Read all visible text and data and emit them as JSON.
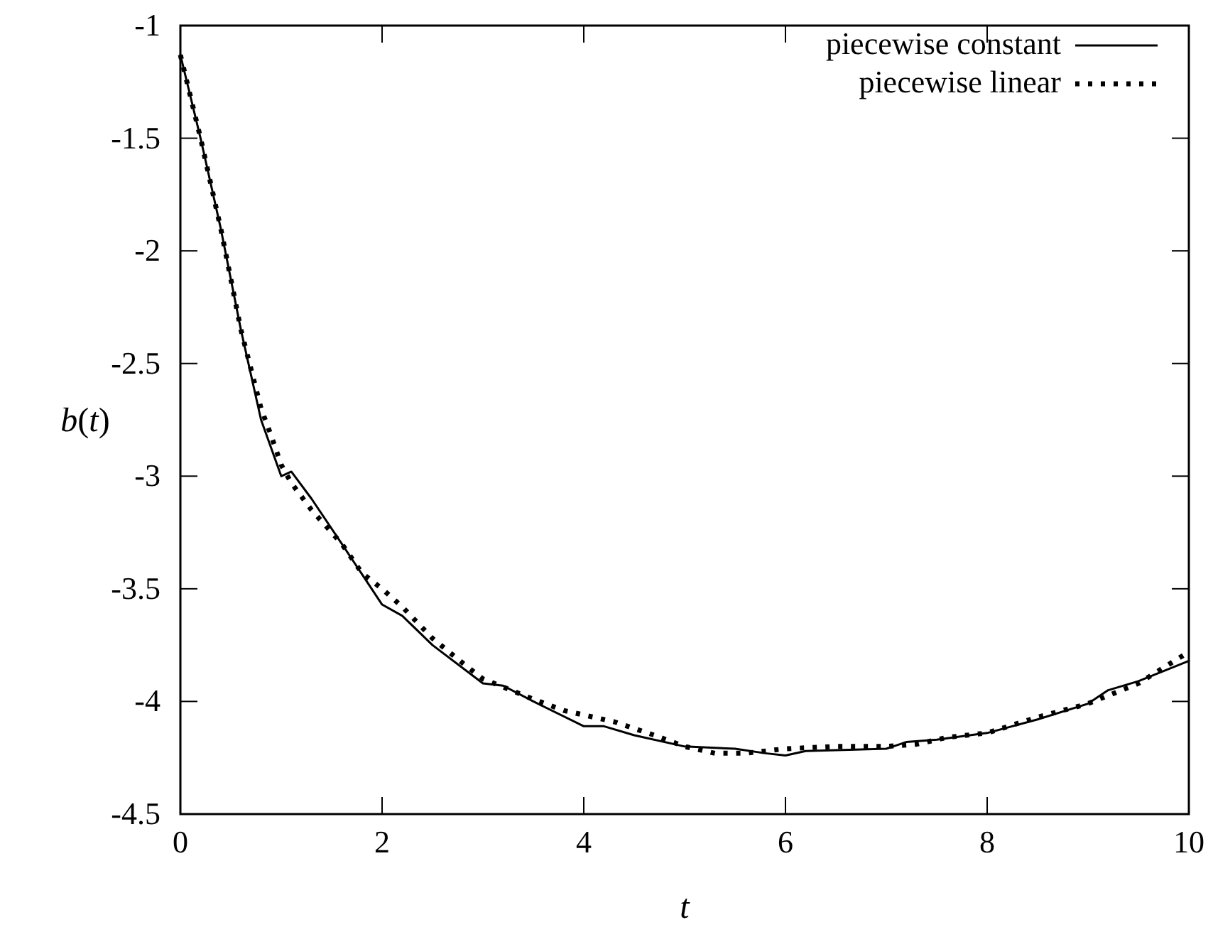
{
  "chart_data": {
    "type": "line",
    "xlabel": "t",
    "ylabel": "b(t)",
    "xlim": [
      0,
      10
    ],
    "ylim": [
      -4.5,
      -1
    ],
    "xticks": [
      0,
      2,
      4,
      6,
      8,
      10
    ],
    "yticks": [
      -4.5,
      -4,
      -3.5,
      -3,
      -2.5,
      -2,
      -1.5,
      -1
    ],
    "grid": false,
    "legend": "top right",
    "series": [
      {
        "name": "piecewise constant",
        "color": "#000000",
        "line_style": "solid",
        "x": [
          0,
          0.2,
          0.4,
          0.6,
          0.8,
          1.0,
          1.1,
          1.3,
          1.6,
          2.0,
          2.2,
          2.5,
          3.0,
          3.2,
          3.5,
          4.0,
          4.2,
          4.5,
          5.0,
          5.5,
          5.8,
          6.0,
          6.2,
          7.0,
          7.2,
          7.5,
          8.0,
          8.5,
          9.0,
          9.2,
          9.5,
          10
        ],
        "values": [
          -1.13,
          -1.5,
          -1.9,
          -2.35,
          -2.75,
          -3.0,
          -2.98,
          -3.1,
          -3.3,
          -3.57,
          -3.62,
          -3.75,
          -3.92,
          -3.93,
          -4.0,
          -4.11,
          -4.11,
          -4.15,
          -4.2,
          -4.21,
          -4.23,
          -4.24,
          -4.22,
          -4.21,
          -4.18,
          -4.17,
          -4.14,
          -4.08,
          -4.01,
          -3.95,
          -3.91,
          -3.82
        ]
      },
      {
        "name": "piecewise linear",
        "color": "#000000",
        "line_style": "dotted",
        "x": [
          0,
          0.2,
          0.4,
          0.6,
          0.8,
          0.9,
          1.0,
          1.1,
          1.3,
          1.6,
          1.8,
          2.0,
          2.2,
          2.5,
          2.8,
          3.0,
          3.5,
          3.8,
          4.0,
          4.3,
          4.7,
          5.0,
          5.3,
          5.6,
          6.0,
          6.5,
          7.0,
          7.3,
          7.6,
          8.0,
          8.5,
          9.0,
          9.5,
          10
        ],
        "values": [
          -1.13,
          -1.5,
          -1.9,
          -2.35,
          -2.7,
          -2.82,
          -2.95,
          -3.03,
          -3.15,
          -3.3,
          -3.43,
          -3.5,
          -3.58,
          -3.72,
          -3.83,
          -3.9,
          -3.99,
          -4.04,
          -4.06,
          -4.09,
          -4.15,
          -4.2,
          -4.23,
          -4.23,
          -4.21,
          -4.2,
          -4.2,
          -4.19,
          -4.16,
          -4.14,
          -4.07,
          -4.01,
          -3.92,
          -3.78
        ]
      }
    ]
  }
}
